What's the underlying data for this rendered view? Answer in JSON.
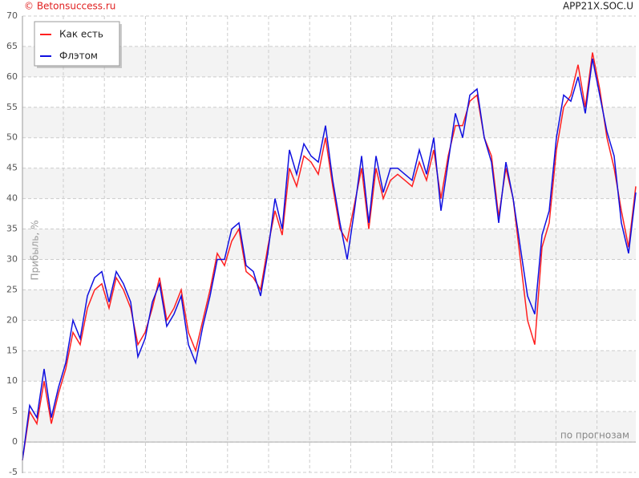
{
  "chart_data": {
    "type": "line",
    "source": "© Betonsuccess.ru",
    "title": "APP21X.SOC.U",
    "ylabel": "Прибыль, %",
    "annotation": "по прогнозам",
    "ylim": [
      -5,
      70
    ],
    "yticks": [
      -5,
      0,
      5,
      10,
      15,
      20,
      25,
      30,
      35,
      40,
      45,
      50,
      55,
      60,
      65,
      70
    ],
    "grid": true,
    "legend": "upper left",
    "series": [
      {
        "name": "Как есть",
        "color": "#ff2020",
        "values": [
          -3,
          5,
          3,
          10,
          3,
          8,
          12,
          18,
          16,
          22,
          25,
          26,
          22,
          27,
          25,
          22,
          16,
          18,
          22,
          27,
          20,
          22,
          25,
          18,
          15,
          20,
          25,
          31,
          29,
          33,
          35,
          28,
          27,
          25,
          32,
          38,
          34,
          45,
          42,
          47,
          46,
          44,
          50,
          42,
          35,
          33,
          39,
          45,
          35,
          45,
          40,
          43,
          44,
          43,
          42,
          46,
          43,
          48,
          40,
          47,
          52,
          52,
          56,
          57,
          50,
          47,
          37,
          45,
          40,
          30,
          20,
          16,
          32,
          36,
          48,
          55,
          57,
          62,
          55,
          64,
          58,
          50,
          45,
          38,
          32,
          42
        ]
      },
      {
        "name": "Флэтом",
        "color": "#1010e0",
        "values": [
          -3,
          6,
          4,
          12,
          4,
          9,
          13,
          20,
          17,
          24,
          27,
          28,
          23,
          28,
          26,
          23,
          14,
          17,
          23,
          26,
          19,
          21,
          24,
          16,
          13,
          19,
          24,
          30,
          30,
          35,
          36,
          29,
          28,
          24,
          31,
          40,
          35,
          48,
          44,
          49,
          47,
          46,
          52,
          43,
          36,
          30,
          38,
          47,
          36,
          47,
          41,
          45,
          45,
          44,
          43,
          48,
          44,
          50,
          38,
          46,
          54,
          50,
          57,
          58,
          50,
          46,
          36,
          46,
          40,
          32,
          24,
          21,
          34,
          38,
          50,
          57,
          56,
          60,
          54,
          63,
          57,
          51,
          47,
          36,
          31,
          41
        ]
      }
    ]
  }
}
